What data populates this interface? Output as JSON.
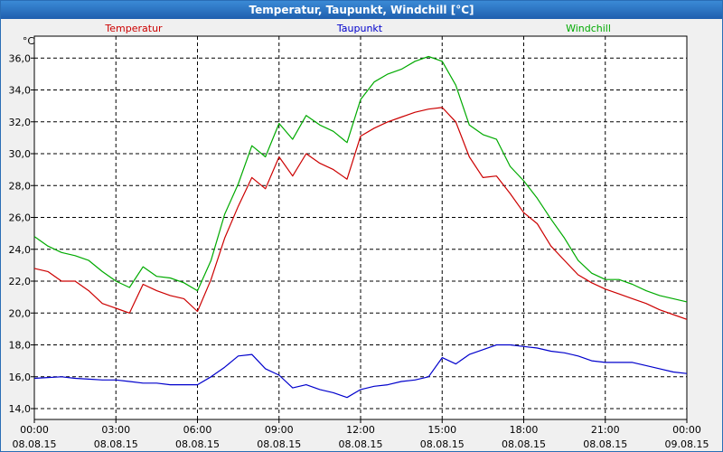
{
  "window": {
    "title": "Temperatur, Taupunkt, Windchill [°C]"
  },
  "chart_data": {
    "type": "line",
    "title": "Temperatur, Taupunkt, Windchill [°C]",
    "ylabel": "°C",
    "ylim": [
      13.7,
      37.5
    ],
    "xlim": [
      0,
      24
    ],
    "yticks": [
      14,
      16,
      18,
      20,
      22,
      24,
      26,
      28,
      30,
      32,
      34,
      36
    ],
    "ytick_labels": [
      "14,0",
      "16,0",
      "18,0",
      "20,0",
      "22,0",
      "24,0",
      "26,0",
      "28,0",
      "30,0",
      "32,0",
      "34,0",
      "36,0"
    ],
    "xticks": [
      0,
      3,
      6,
      9,
      12,
      15,
      18,
      21,
      24
    ],
    "xtick_time_labels": [
      "00:00",
      "03:00",
      "06:00",
      "09:00",
      "12:00",
      "15:00",
      "18:00",
      "21:00",
      "00:00"
    ],
    "xtick_date_labels": [
      "08.08.15",
      "08.08.15",
      "08.08.15",
      "08.08.15",
      "08.08.15",
      "08.08.15",
      "08.08.15",
      "08.08.15",
      "09.08.15"
    ],
    "grid": true,
    "series": [
      {
        "name": "Temperatur",
        "color": "#cc0000",
        "x": [
          0,
          0.5,
          1,
          1.5,
          2,
          2.5,
          3,
          3.5,
          4,
          4.5,
          5,
          5.5,
          6,
          6.5,
          7,
          7.5,
          8,
          8.5,
          9,
          9.5,
          10,
          10.5,
          11,
          11.5,
          12,
          12.5,
          13,
          13.5,
          14,
          14.5,
          15,
          15.5,
          16,
          16.5,
          17,
          17.5,
          18,
          18.5,
          19,
          19.5,
          20,
          20.5,
          21,
          21.5,
          22,
          22.5,
          23,
          23.5,
          24
        ],
        "values": [
          22.8,
          22.6,
          22.0,
          22.0,
          21.4,
          20.6,
          20.3,
          20.0,
          21.8,
          21.4,
          21.1,
          20.9,
          20.1,
          22.1,
          24.7,
          26.7,
          28.5,
          27.8,
          29.8,
          28.6,
          30.0,
          29.4,
          29.0,
          28.4,
          31.1,
          31.6,
          32.0,
          32.3,
          32.6,
          32.8,
          32.9,
          32.0,
          29.8,
          28.5,
          28.6,
          27.5,
          26.3,
          25.6,
          24.2,
          23.3,
          22.4,
          21.9,
          21.5,
          21.2,
          20.9,
          20.6,
          20.2,
          19.9,
          19.6
        ]
      },
      {
        "name": "Taupunkt",
        "color": "#0000cc",
        "x": [
          0,
          0.5,
          1,
          1.5,
          2,
          2.5,
          3,
          3.5,
          4,
          4.5,
          5,
          5.5,
          6,
          6.5,
          7,
          7.5,
          8,
          8.5,
          9,
          9.5,
          10,
          10.5,
          11,
          11.5,
          12,
          12.5,
          13,
          13.5,
          14,
          14.5,
          15,
          15.5,
          16,
          16.5,
          17,
          17.5,
          18,
          18.5,
          19,
          19.5,
          20,
          20.5,
          21,
          21.5,
          22,
          22.5,
          23,
          23.5,
          24
        ],
        "values": [
          15.9,
          15.95,
          16.0,
          15.9,
          15.85,
          15.8,
          15.8,
          15.7,
          15.6,
          15.6,
          15.5,
          15.5,
          15.5,
          16.0,
          16.6,
          17.3,
          17.4,
          16.5,
          16.1,
          15.3,
          15.5,
          15.2,
          15.0,
          14.7,
          15.2,
          15.4,
          15.5,
          15.7,
          15.8,
          16.0,
          17.2,
          16.8,
          17.4,
          17.7,
          18.0,
          18.0,
          17.9,
          17.8,
          17.6,
          17.5,
          17.3,
          17.0,
          16.9,
          16.9,
          16.9,
          16.7,
          16.5,
          16.3,
          16.2
        ]
      },
      {
        "name": "Windchill",
        "color": "#00aa00",
        "x": [
          0,
          0.5,
          1,
          1.5,
          2,
          2.5,
          3,
          3.5,
          4,
          4.5,
          5,
          5.5,
          6,
          6.5,
          7,
          7.5,
          8,
          8.5,
          9,
          9.5,
          10,
          10.5,
          11,
          11.5,
          12,
          12.5,
          13,
          13.5,
          14,
          14.5,
          15,
          15.5,
          16,
          16.5,
          17,
          17.5,
          18,
          18.5,
          19,
          19.5,
          20,
          20.5,
          21,
          21.5,
          22,
          22.5,
          23,
          23.5,
          24
        ],
        "values": [
          24.8,
          24.2,
          23.8,
          23.6,
          23.3,
          22.6,
          22.0,
          21.6,
          22.9,
          22.3,
          22.2,
          21.9,
          21.4,
          23.3,
          26.2,
          28.1,
          30.5,
          29.8,
          31.9,
          30.9,
          32.4,
          31.8,
          31.4,
          30.7,
          33.4,
          34.5,
          35.0,
          35.3,
          35.8,
          36.1,
          35.8,
          34.3,
          31.8,
          31.2,
          30.9,
          29.2,
          28.3,
          27.2,
          25.9,
          24.7,
          23.3,
          22.5,
          22.1,
          22.1,
          21.8,
          21.4,
          21.1,
          20.9,
          20.7
        ]
      }
    ]
  }
}
